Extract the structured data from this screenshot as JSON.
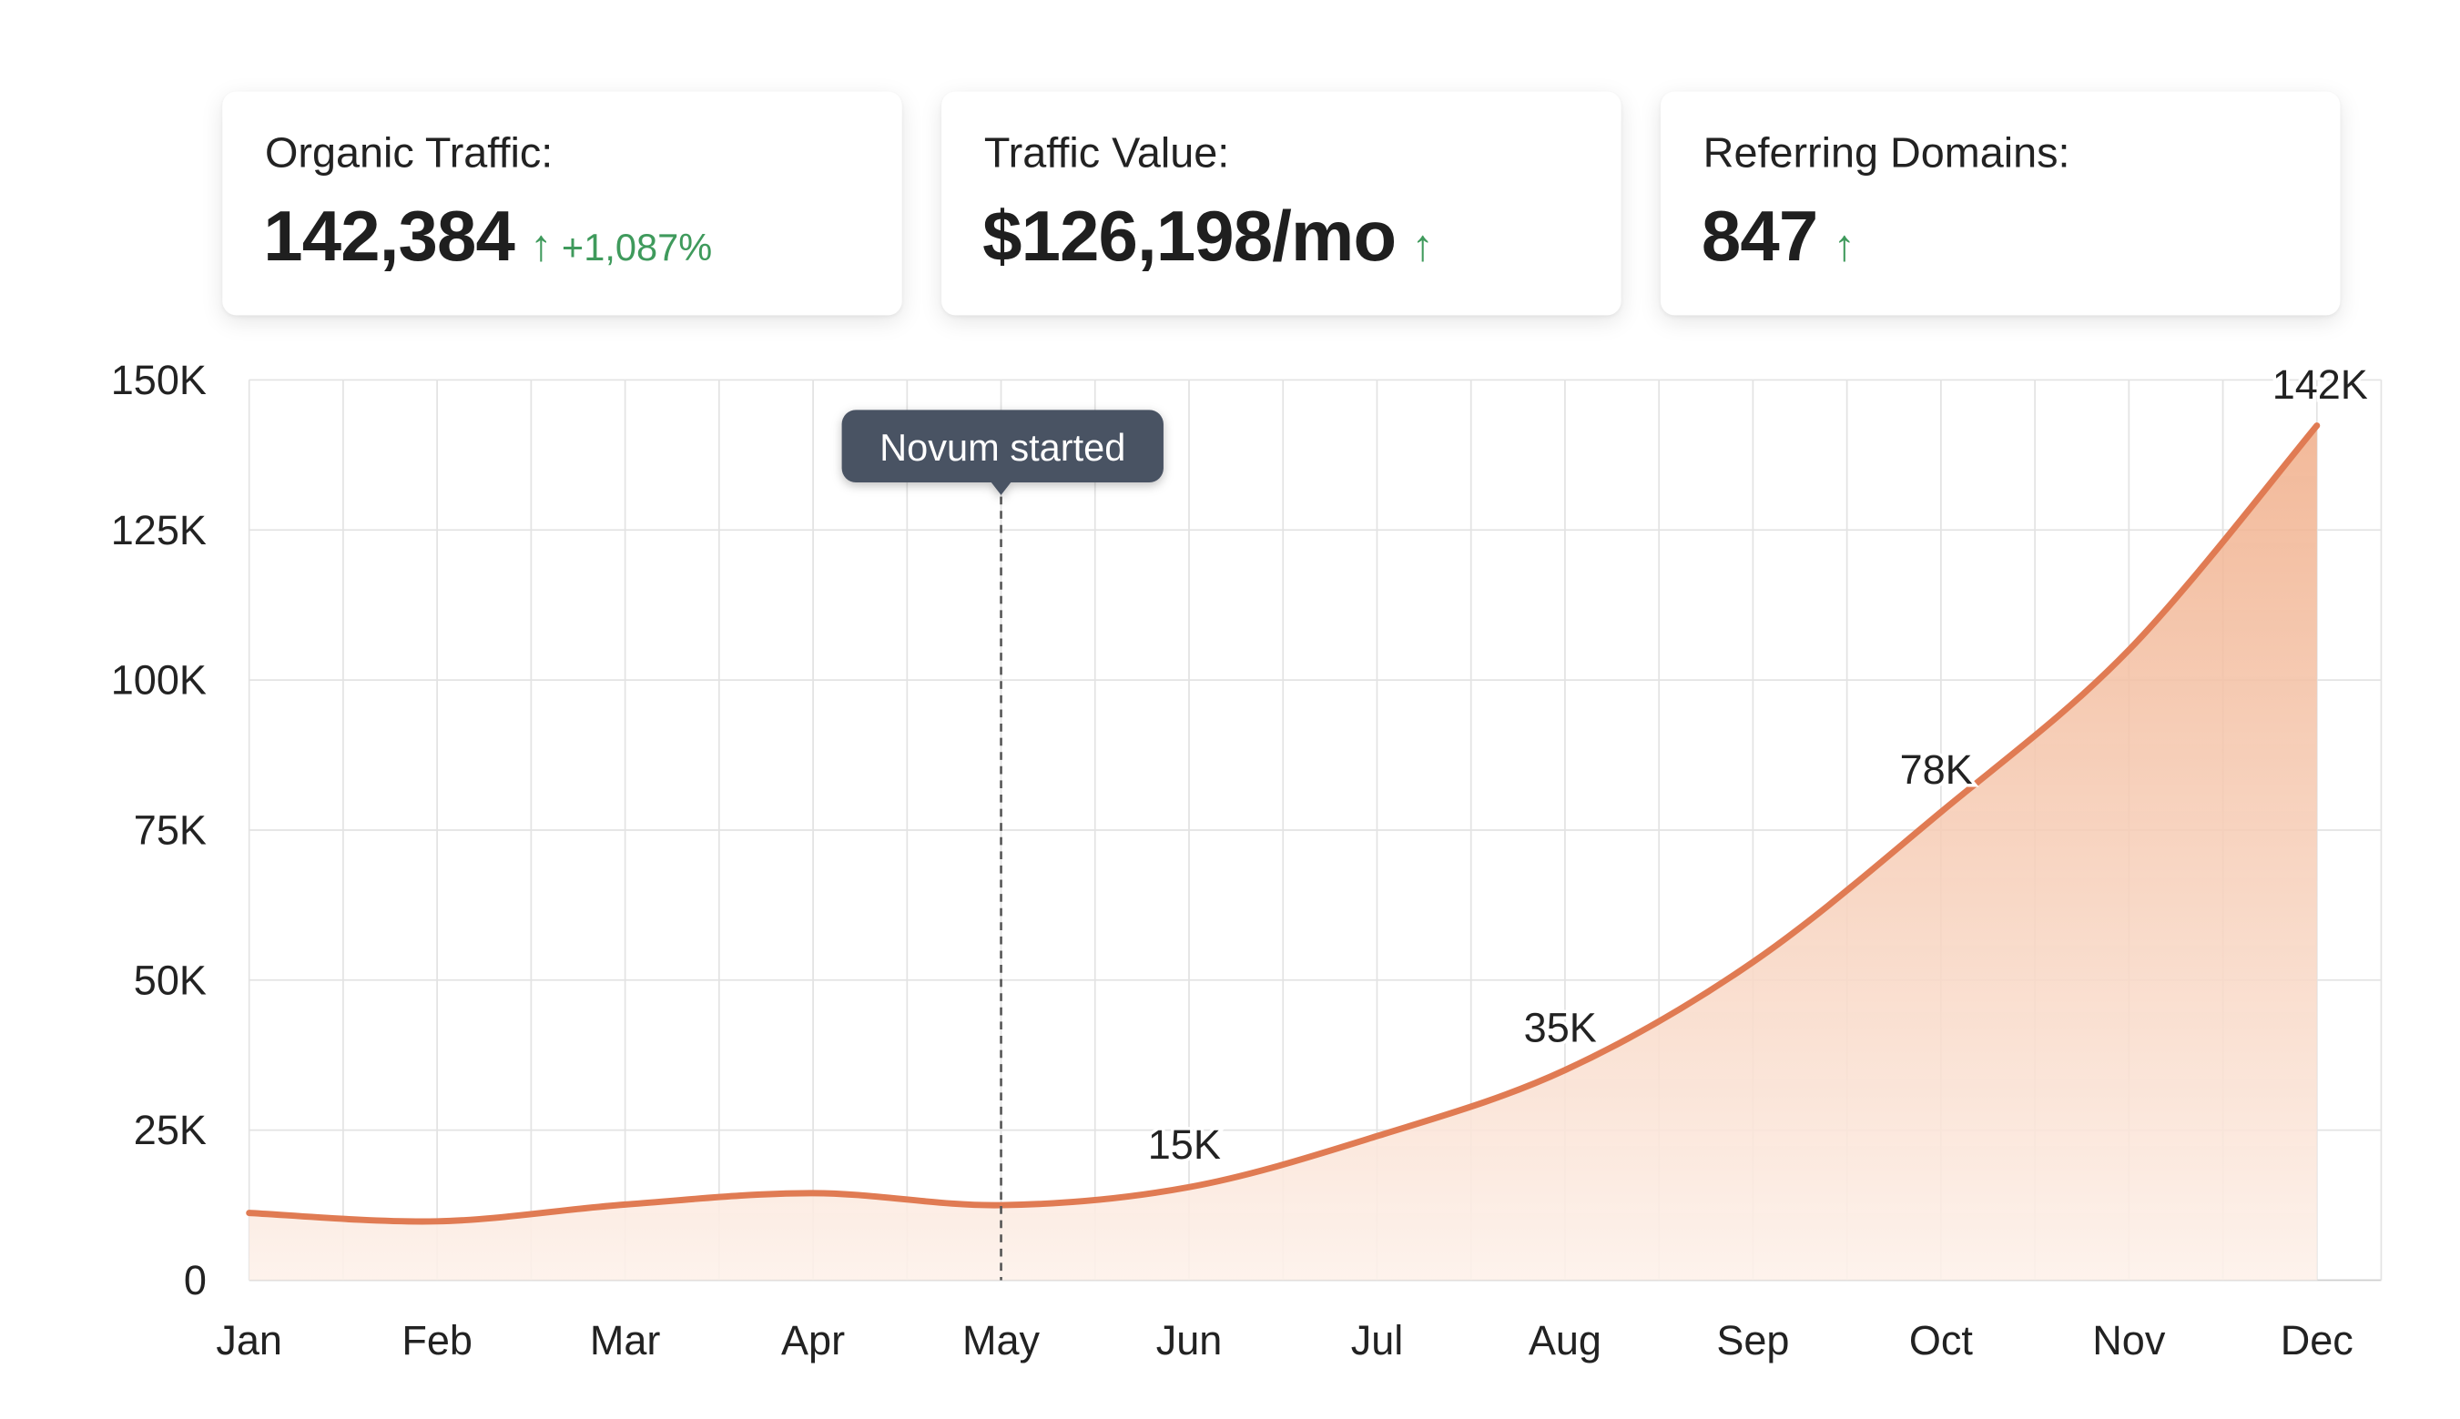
{
  "kpis": [
    {
      "label": "Organic Traffic:",
      "value": "142,384",
      "trend_icon": "arrow-up-icon",
      "delta": "+1,087%"
    },
    {
      "label": "Traffic Value:",
      "value": "$126,198/mo",
      "trend_icon": "arrow-up-icon",
      "delta": ""
    },
    {
      "label": "Referring Domains:",
      "value": "847",
      "trend_icon": "arrow-up-icon",
      "delta": ""
    }
  ],
  "colors": {
    "line": "#e07b53",
    "fill_top": "#f0ad88",
    "fill_bottom": "#fdf1ea",
    "positive": "#3f9a5c",
    "tooltip_bg": "#4a5263",
    "grid": "#e3e3e3"
  },
  "chart_data": {
    "type": "area",
    "categories": [
      "Jan",
      "Feb",
      "Mar",
      "Apr",
      "May",
      "Jun",
      "Jul",
      "Aug",
      "Sep",
      "Oct",
      "Nov",
      "Dec"
    ],
    "values": [
      11200,
      9800,
      12600,
      14500,
      12500,
      15500,
      24000,
      35000,
      53000,
      78000,
      105000,
      142400
    ],
    "ylim": [
      0,
      150000
    ],
    "yticks": [
      0,
      25000,
      50000,
      75000,
      100000,
      125000,
      150000
    ],
    "ytick_labels": [
      "0",
      "25K",
      "50K",
      "75K",
      "100K",
      "125K",
      "150K"
    ],
    "grid": true,
    "data_labels": [
      {
        "category": "Jun",
        "text": "15K"
      },
      {
        "category": "Aug",
        "text": "35K"
      },
      {
        "category": "Oct",
        "text": "78K"
      },
      {
        "category": "Dec",
        "text": "142K"
      }
    ],
    "annotation": {
      "category": "May",
      "text": "Novum started"
    }
  }
}
